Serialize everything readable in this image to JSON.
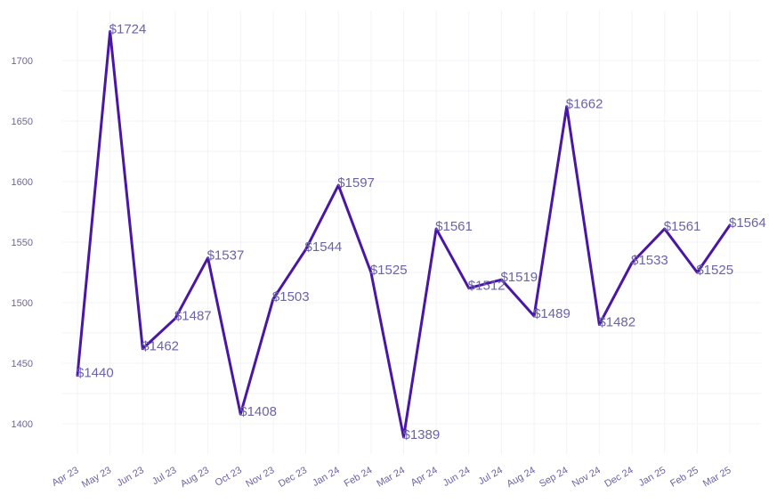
{
  "chart_data": {
    "type": "line",
    "title": "",
    "xlabel": "",
    "ylabel": "",
    "categories": [
      "Apr 23",
      "May 23",
      "Jun 23",
      "Jul 23",
      "Aug 23",
      "Oct 23",
      "Nov 23",
      "Dec 23",
      "Jan 24",
      "Feb 24",
      "Mar 24",
      "Apr 24",
      "Jun 24",
      "Jul 24",
      "Aug 24",
      "Sep 24",
      "Nov 24",
      "Dec 24",
      "Jan 25",
      "Feb 25",
      "Mar 25"
    ],
    "series": [
      {
        "values": [
          1440,
          1724,
          1462,
          1487,
          1537,
          1408,
          1503,
          1544,
          1597,
          1525,
          1389,
          1561,
          1512,
          1519,
          1489,
          1662,
          1482,
          1533,
          1561,
          1525,
          1564
        ],
        "color": "#4a16a6"
      }
    ],
    "data_labels": [
      "$1440",
      "$1724",
      "$1462",
      "$1487",
      "$1537",
      "$1408",
      "$1503",
      "$1544",
      "$1597",
      "$1525",
      "$1389",
      "$1561",
      "$1512",
      "$1519",
      "$1489",
      "$1662",
      "$1482",
      "$1533",
      "$1561",
      "$1525",
      "$1564"
    ],
    "y_ticks": [
      1400,
      1450,
      1500,
      1550,
      1600,
      1650,
      1700
    ],
    "ylim": [
      1370,
      1735
    ],
    "grid": true,
    "legend": "none"
  }
}
